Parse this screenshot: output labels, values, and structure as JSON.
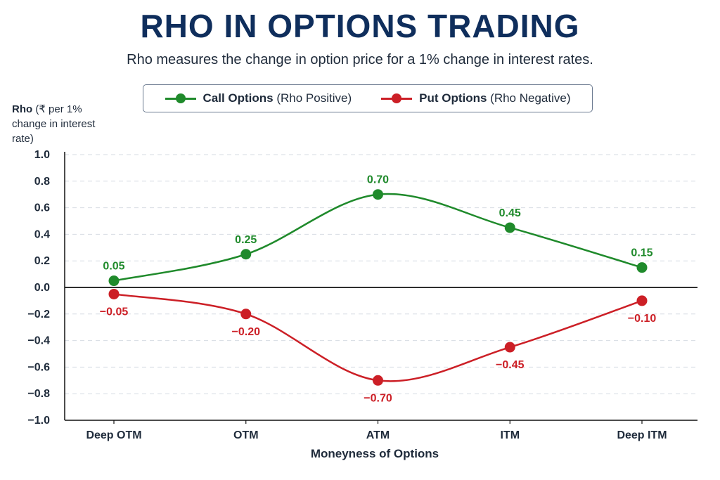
{
  "title": "RHO IN OPTIONS TRADING",
  "subtitle": "Rho measures the change in option price for a 1% change in interest rates.",
  "colors": {
    "title": "#0f2e5c",
    "call": "#1f8a2b",
    "put": "#cc1f26",
    "grid": "#d6dbe3",
    "zero_line": "#111111"
  },
  "chart_data": {
    "type": "line",
    "title": "",
    "xlabel": "Moneyness of Options",
    "ylabel": "Rho (₹ per 1% change in interest rate)",
    "ylabel_bold": "Rho",
    "ylabel_rest": " (₹ per 1% change in interest rate)",
    "categories": [
      "Deep OTM",
      "OTM",
      "ATM",
      "ITM",
      "Deep ITM"
    ],
    "ylim": [
      -1.0,
      1.0
    ],
    "yticks": [
      1.0,
      0.8,
      0.6,
      0.4,
      0.2,
      0.0,
      -0.2,
      -0.4,
      -0.6,
      -0.8,
      -1.0
    ],
    "ytick_labels": [
      "1.0",
      "0.8",
      "0.6",
      "0.4",
      "0.2",
      "0.0",
      "−0.2",
      "−0.4",
      "−0.6",
      "−0.8",
      "−1.0"
    ],
    "grid": true,
    "legend_position": "top-center",
    "series": [
      {
        "name": "Call Options (Rho Positive)",
        "name_bold": "Call Options",
        "name_rest": " (Rho Positive)",
        "color": "#1f8a2b",
        "values": [
          0.05,
          0.25,
          0.7,
          0.45,
          0.15
        ],
        "labels": [
          "0.05",
          "0.25",
          "0.70",
          "0.45",
          "0.15"
        ]
      },
      {
        "name": "Put Options (Rho Negative)",
        "name_bold": "Put Options",
        "name_rest": " (Rho Negative)",
        "color": "#cc1f26",
        "values": [
          -0.05,
          -0.2,
          -0.7,
          -0.45,
          -0.1
        ],
        "labels": [
          "−0.05",
          "−0.20",
          "−0.70",
          "−0.45",
          "−0.10"
        ]
      }
    ]
  }
}
